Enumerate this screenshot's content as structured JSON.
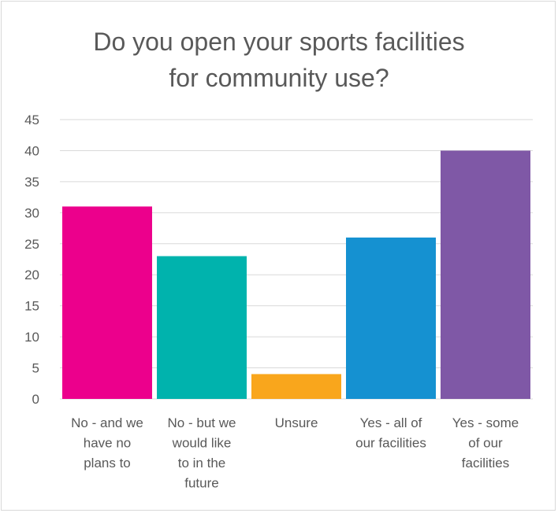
{
  "chart_data": {
    "type": "bar",
    "title": "Do you open your sports facilities for community use?",
    "title_lines": [
      "Do you open your sports facilities",
      "for community use?"
    ],
    "categories": [
      "No - and we have no plans to",
      "No - but we would like to in the future",
      "Unsure",
      "Yes - all of our facilities",
      "Yes - some of our facilities"
    ],
    "category_lines": [
      [
        "No - and we",
        "have no",
        "plans to"
      ],
      [
        "No - but we",
        "would like",
        "to in the",
        "future"
      ],
      [
        "Unsure"
      ],
      [
        "Yes - all of",
        "our facilities"
      ],
      [
        "Yes - some",
        "of our",
        "facilities"
      ]
    ],
    "values": [
      31,
      23,
      4,
      26,
      40
    ],
    "colors": [
      "#ec008c",
      "#00b3ad",
      "#f9a61c",
      "#1591d1",
      "#7f58a6"
    ],
    "ylim": [
      0,
      45
    ],
    "yticks": [
      0,
      5,
      10,
      15,
      20,
      25,
      30,
      35,
      40,
      45
    ],
    "grid": true,
    "xlabel": "",
    "ylabel": ""
  }
}
